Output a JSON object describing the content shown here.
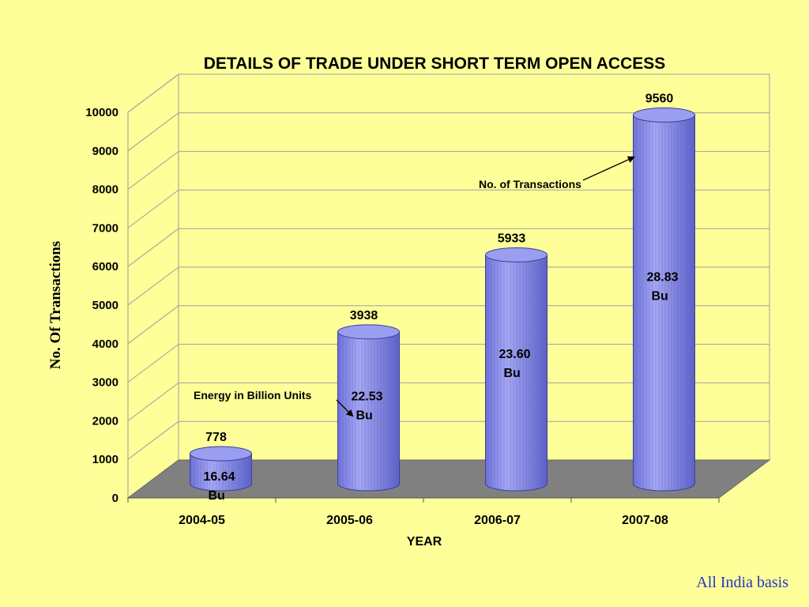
{
  "chart_data": {
    "type": "bar",
    "title": "DETAILS OF TRADE UNDER SHORT TERM OPEN ACCESS",
    "xlabel": "YEAR",
    "ylabel": "No. Of Transactions",
    "categories": [
      "2004-05",
      "2005-06",
      "2006-07",
      "2007-08"
    ],
    "series": [
      {
        "name": "No. of Transactions",
        "values": [
          778,
          3938,
          5933,
          9560
        ]
      }
    ],
    "energy_labels": [
      {
        "value": "16.64",
        "unit": "Bu"
      },
      {
        "value": "22.53",
        "unit": "Bu"
      },
      {
        "value": "23.60",
        "unit": "Bu"
      },
      {
        "value": "28.83",
        "unit": "Bu"
      }
    ],
    "ylim": [
      0,
      10000
    ],
    "yticks": [
      0,
      1000,
      2000,
      3000,
      4000,
      5000,
      6000,
      7000,
      8000,
      9000,
      10000
    ],
    "grid": true,
    "annotations": [
      "No. of Transactions",
      "Energy in Billion Units"
    ],
    "colors": {
      "background": "#FFFF99",
      "bar": "#8A8EEA",
      "bar_top": "#9A9EF0",
      "floor": "#808080",
      "grid": "#9E9E9E"
    }
  },
  "footer": "All India basis"
}
